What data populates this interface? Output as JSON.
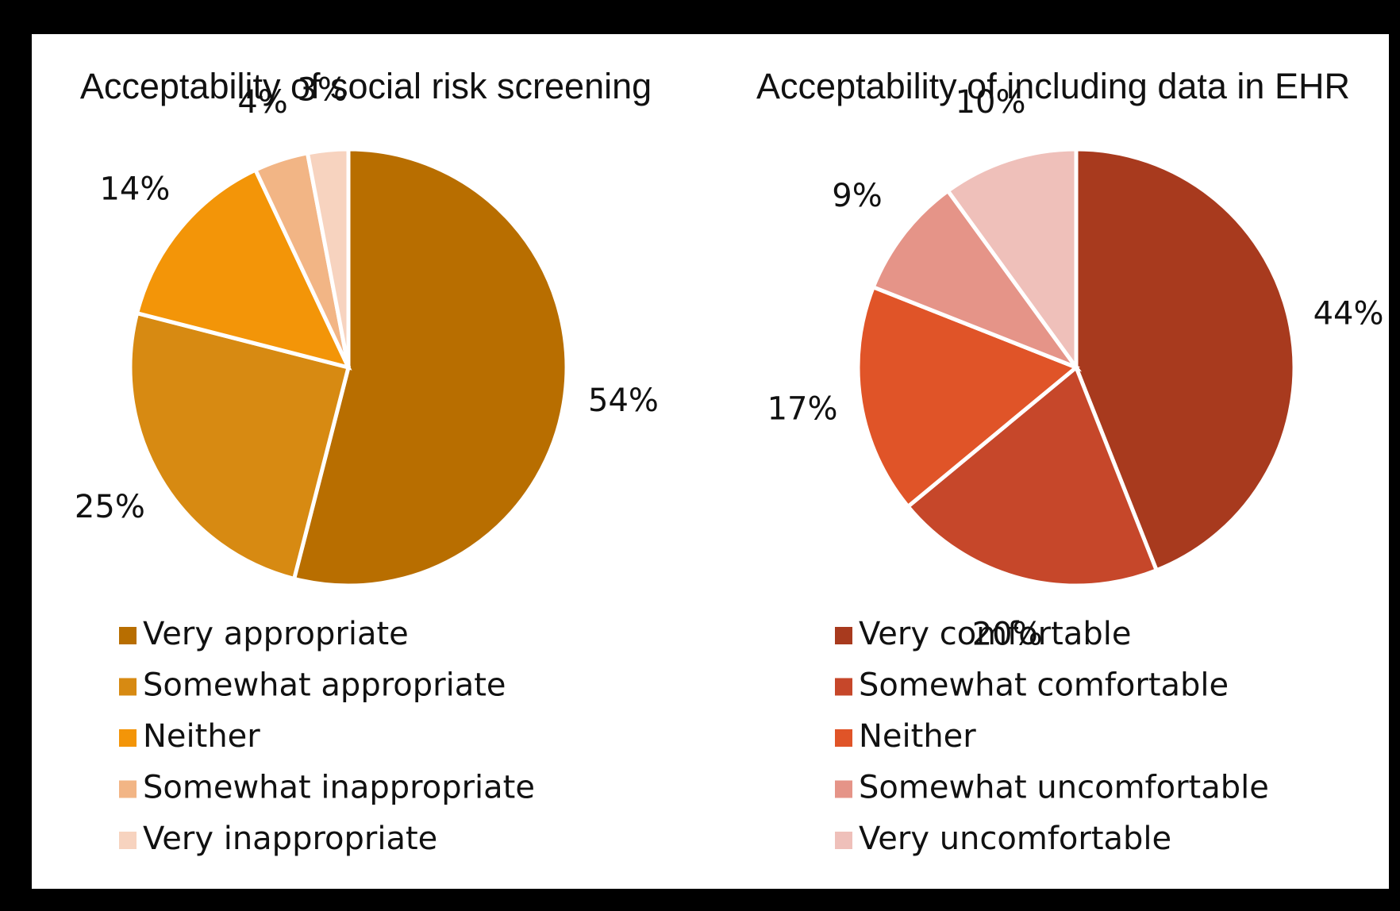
{
  "chart_data": [
    {
      "type": "pie",
      "title": "Acceptability of social risk screening",
      "categories": [
        "Very appropriate",
        "Somewhat appropriate",
        "Neither",
        "Somewhat inappropriate",
        "Very inappropriate"
      ],
      "values": [
        54,
        25,
        14,
        4,
        3
      ],
      "value_labels": [
        "54%",
        "25%",
        "14%",
        "4%",
        "3%"
      ],
      "colors": [
        "#b86e00",
        "#d78a12",
        "#f39508",
        "#f2b585",
        "#f7d3bf"
      ]
    },
    {
      "type": "pie",
      "title": "Acceptability of including data in EHR",
      "categories": [
        "Very comfortable",
        "Somewhat comfortable",
        "Neither",
        "Somewhat uncomfortable",
        "Very uncomfortable"
      ],
      "values": [
        44,
        20,
        17,
        9,
        10
      ],
      "value_labels": [
        "44%",
        "20%",
        "17%",
        "9%",
        "10%"
      ],
      "colors": [
        "#a83a1e",
        "#c6472a",
        "#e05428",
        "#e59488",
        "#efc0ba"
      ]
    }
  ]
}
